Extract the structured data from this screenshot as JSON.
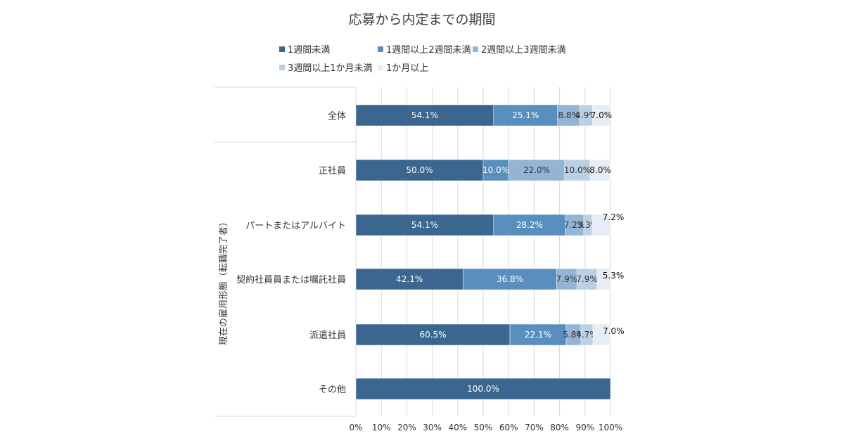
{
  "chart_data": {
    "type": "bar",
    "orientation": "horizontal",
    "stacked": true,
    "title": "応募から内定までの期間",
    "ylabel": "現在の雇用形態（転職完了者）",
    "xlabel": "",
    "xlim": [
      0,
      100
    ],
    "x_ticks": [
      "0%",
      "10%",
      "20%",
      "30%",
      "40%",
      "50%",
      "60%",
      "70%",
      "80%",
      "90%",
      "100%"
    ],
    "grid": true,
    "legend_position": "top",
    "categories": [
      "全体",
      "正社員",
      "パートまたはアルバイト",
      "契約社員員または嘱託社員",
      "派遣社員",
      "その他"
    ],
    "series": [
      {
        "name": "1週間未満",
        "color": "#3a6690",
        "values": [
          54.1,
          50.0,
          54.1,
          42.1,
          60.5,
          100.0
        ]
      },
      {
        "name": "1週間以上2週間未満",
        "color": "#588fbf",
        "values": [
          25.1,
          10.0,
          28.2,
          36.8,
          22.1,
          0
        ]
      },
      {
        "name": "2週間以上3週間未満",
        "color": "#93b4d4",
        "values": [
          8.8,
          22.0,
          7.2,
          7.9,
          5.8,
          0
        ]
      },
      {
        "name": "3週間以上1か月未満",
        "color": "#bcd0e4",
        "values": [
          4.9,
          10.0,
          3.3,
          7.9,
          4.7,
          0
        ]
      },
      {
        "name": "1か月以上",
        "color": "#e6edf5",
        "values": [
          7.0,
          8.0,
          7.2,
          5.3,
          7.0,
          0
        ]
      }
    ],
    "data_labels": [
      [
        "54.1%",
        "25.1%",
        "8.8%",
        "4.9%",
        "7.0%"
      ],
      [
        "50.0%",
        "10.0%",
        "22.0%",
        "10.0%",
        "8.0%"
      ],
      [
        "54.1%",
        "28.2%",
        "7.2%",
        "3.3%",
        "7.2%"
      ],
      [
        "42.1%",
        "36.8%",
        "7.9%",
        "7.9%",
        "5.3%"
      ],
      [
        "60.5%",
        "22.1%",
        "5.8%",
        "4.7%",
        "7.0%"
      ],
      [
        "100.0%",
        "",
        "",
        "",
        ""
      ]
    ]
  }
}
